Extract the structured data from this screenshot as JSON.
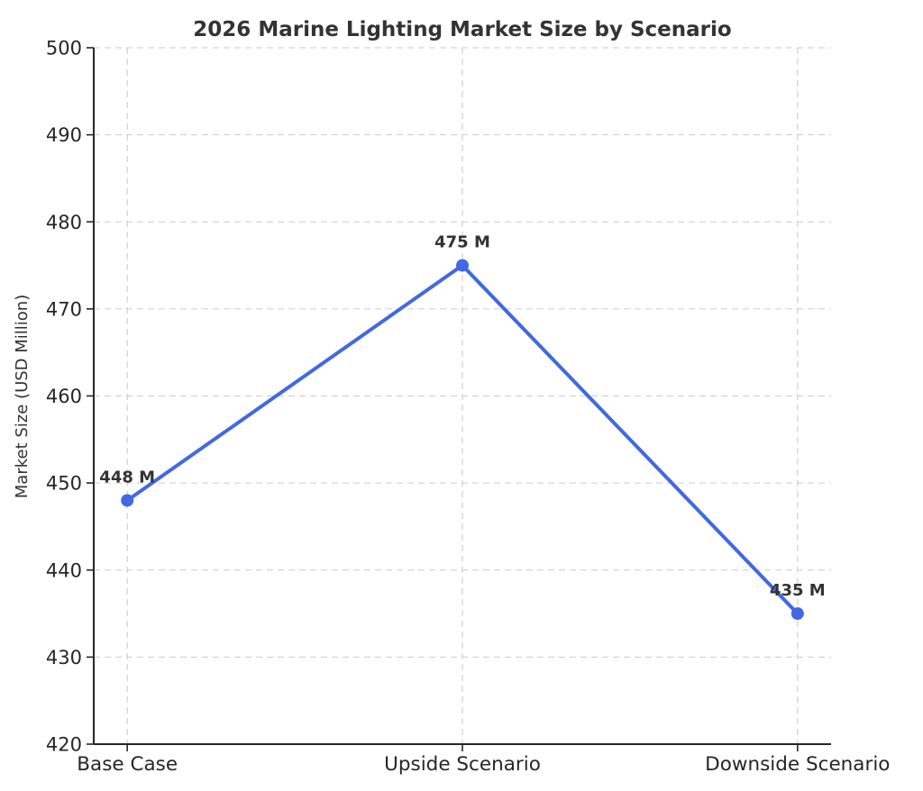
{
  "chart_data": {
    "type": "line",
    "title": "2026 Marine Lighting Market Size by Scenario",
    "categories": [
      "Base Case",
      "Upside Scenario",
      "Downside Scenario"
    ],
    "series": [
      {
        "name": "Market Size",
        "values": [
          448,
          475,
          435
        ],
        "data_labels": [
          "448 M",
          "475 M",
          "435 M"
        ]
      }
    ],
    "xlabel": "",
    "ylabel": "Market Size (USD Million)",
    "ylim": [
      420,
      500
    ],
    "ytick_step": 10,
    "yticks": [
      420,
      430,
      440,
      450,
      460,
      470,
      480,
      490,
      500
    ],
    "grid": true,
    "grid_style": "dashed",
    "legend": "none",
    "marker": "circle",
    "style": {
      "line_color": "#4169E1",
      "marker_color": "#4169E1",
      "grid_color": "#cccccc",
      "spine_color": "#262626",
      "tick_color": "#262626",
      "tick_label_color": "#262626",
      "title_color": "#333333",
      "axis_label_color": "#333333",
      "data_label_color": "#333333",
      "background": "#ffffff"
    }
  }
}
